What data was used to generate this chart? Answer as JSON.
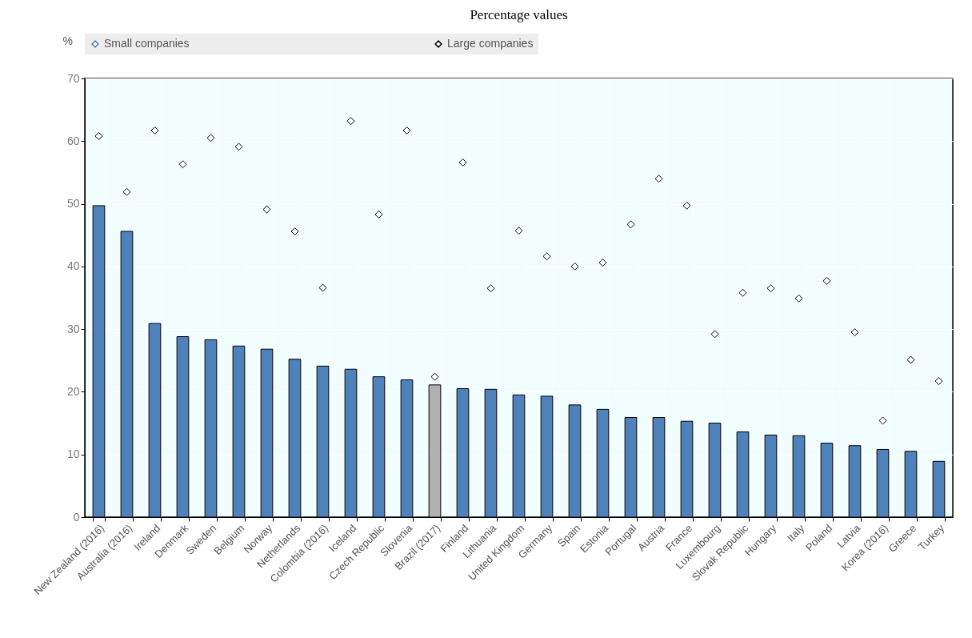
{
  "chart_data": {
    "type": "bar",
    "title": "Percentage values",
    "ylabel": "%",
    "categories": [
      "New Zealand (2016)",
      "Australia (2016)",
      "Ireland",
      "Denmark",
      "Sweden",
      "Belgium",
      "Norway",
      "Netherlands",
      "Colombia (2016)",
      "Iceland",
      "Czech Republic",
      "Slovenia",
      "Brazil (2017)",
      "Finland",
      "Lithuania",
      "United Kingdom",
      "Germany",
      "Spain",
      "Estonia",
      "Portugal",
      "Austria",
      "France",
      "Luxembourg",
      "Slovak Republic",
      "Hungary",
      "Italy",
      "Poland",
      "Latvia",
      "Korea (2016)",
      "Greece",
      "Turkey"
    ],
    "series": [
      {
        "name": "Small  companies",
        "type": "bar",
        "color": "#4f81bd",
        "colors": [
          "#4f81bd",
          "#4f81bd",
          "#4f81bd",
          "#4f81bd",
          "#4f81bd",
          "#4f81bd",
          "#4f81bd",
          "#4f81bd",
          "#4f81bd",
          "#4f81bd",
          "#4f81bd",
          "#4f81bd",
          "#b0b0b0",
          "#4f81bd",
          "#4f81bd",
          "#4f81bd",
          "#4f81bd",
          "#4f81bd",
          "#4f81bd",
          "#4f81bd",
          "#4f81bd",
          "#4f81bd",
          "#4f81bd",
          "#4f81bd",
          "#4f81bd",
          "#4f81bd",
          "#4f81bd",
          "#4f81bd",
          "#4f81bd",
          "#4f81bd",
          "#4f81bd"
        ],
        "values": [
          49.7,
          45.6,
          30.9,
          28.8,
          28.3,
          27.3,
          26.8,
          25.2,
          24.1,
          23.6,
          22.4,
          21.9,
          21.1,
          20.5,
          20.4,
          19.5,
          19.3,
          17.9,
          17.2,
          15.9,
          15.9,
          15.3,
          15.0,
          13.6,
          13.1,
          13.0,
          11.8,
          11.4,
          10.8,
          10.5,
          8.9
        ]
      },
      {
        "name": "Large companies",
        "type": "scatter",
        "marker": "diamond",
        "color": "#000000",
        "values": [
          60.8,
          51.9,
          61.7,
          56.3,
          60.5,
          59.1,
          49.1,
          45.6,
          36.6,
          63.2,
          48.3,
          61.7,
          22.4,
          56.6,
          36.5,
          45.7,
          41.6,
          40.0,
          40.6,
          46.7,
          54.0,
          49.7,
          29.2,
          35.8,
          36.5,
          34.9,
          37.7,
          29.5,
          15.4,
          25.1,
          21.7
        ]
      }
    ],
    "ylim": [
      0,
      70
    ],
    "yticks": [
      0,
      10,
      20,
      30,
      40,
      50,
      60,
      70
    ],
    "grid": true,
    "legend": "top"
  }
}
